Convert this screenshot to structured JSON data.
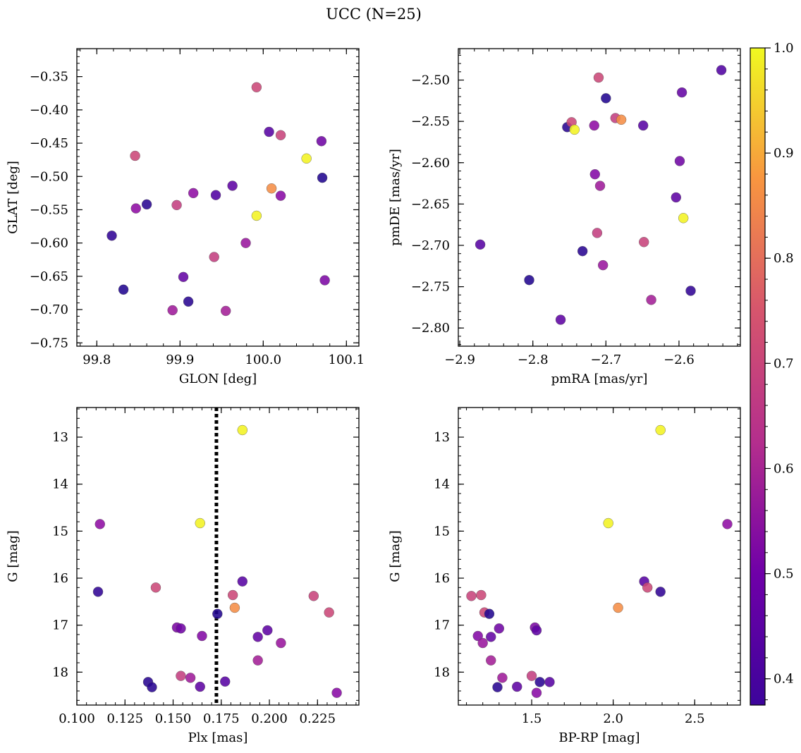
{
  "figure": {
    "title": "UCC (N=25)"
  },
  "colorbar": {
    "min": 0.375,
    "max": 1.0,
    "ticks": [
      0.4,
      0.5,
      0.6,
      0.7,
      0.8,
      0.9,
      1.0
    ],
    "tick_labels": [
      "0.4",
      "0.5",
      "0.6",
      "0.7",
      "0.8",
      "0.9",
      "1.0"
    ],
    "colormap": "plasma"
  },
  "chart_data": [
    {
      "type": "scatter",
      "id": "glon-glat",
      "xlabel": "GLON [deg]",
      "ylabel": "GLAT [deg]",
      "xlim": [
        99.776,
        100.115
      ],
      "ylim": [
        -0.755,
        -0.308
      ],
      "xticks": [
        99.8,
        99.9,
        100.0,
        100.1
      ],
      "xtick_labels": [
        "99.8",
        "99.9",
        "100.0",
        "100.1"
      ],
      "yticks": [
        -0.35,
        -0.4,
        -0.45,
        -0.5,
        -0.55,
        -0.6,
        -0.65,
        -0.7,
        -0.75
      ],
      "ytick_labels": [
        "−0.35",
        "−0.40",
        "−0.45",
        "−0.50",
        "−0.55",
        "−0.60",
        "−0.65",
        "−0.70",
        "−0.75"
      ],
      "y_inverted": false,
      "points": [
        {
          "x": 99.818,
          "y": -0.589,
          "c": 0.42
        },
        {
          "x": 99.832,
          "y": -0.67,
          "c": 0.4
        },
        {
          "x": 99.846,
          "y": -0.469,
          "c": 0.69
        },
        {
          "x": 99.847,
          "y": -0.548,
          "c": 0.56
        },
        {
          "x": 99.86,
          "y": -0.542,
          "c": 0.41
        },
        {
          "x": 99.891,
          "y": -0.701,
          "c": 0.59
        },
        {
          "x": 99.896,
          "y": -0.543,
          "c": 0.67
        },
        {
          "x": 99.904,
          "y": -0.651,
          "c": 0.49
        },
        {
          "x": 99.91,
          "y": -0.688,
          "c": 0.41
        },
        {
          "x": 99.916,
          "y": -0.525,
          "c": 0.56
        },
        {
          "x": 99.941,
          "y": -0.621,
          "c": 0.67
        },
        {
          "x": 99.943,
          "y": -0.528,
          "c": 0.46
        },
        {
          "x": 99.955,
          "y": -0.702,
          "c": 0.6
        },
        {
          "x": 99.963,
          "y": -0.514,
          "c": 0.48
        },
        {
          "x": 99.979,
          "y": -0.6,
          "c": 0.58
        },
        {
          "x": 99.992,
          "y": -0.366,
          "c": 0.69
        },
        {
          "x": 99.992,
          "y": -0.559,
          "c": 0.99
        },
        {
          "x": 100.007,
          "y": -0.433,
          "c": 0.47
        },
        {
          "x": 100.01,
          "y": -0.518,
          "c": 0.83
        },
        {
          "x": 100.021,
          "y": -0.438,
          "c": 0.68
        },
        {
          "x": 100.021,
          "y": -0.529,
          "c": 0.55
        },
        {
          "x": 100.052,
          "y": -0.473,
          "c": 0.99
        },
        {
          "x": 100.07,
          "y": -0.447,
          "c": 0.51
        },
        {
          "x": 100.071,
          "y": -0.502,
          "c": 0.4
        },
        {
          "x": 100.074,
          "y": -0.656,
          "c": 0.53
        }
      ]
    },
    {
      "type": "scatter",
      "id": "pmra-pmde",
      "xlabel": "pmRA [mas/yr]",
      "ylabel": "pmDE [mas/yr]",
      "xlim": [
        -2.902,
        -2.516
      ],
      "ylim": [
        -2.822,
        -2.462
      ],
      "xticks": [
        -2.9,
        -2.8,
        -2.7,
        -2.6
      ],
      "xtick_labels": [
        "−2.9",
        "−2.8",
        "−2.7",
        "−2.6"
      ],
      "yticks": [
        -2.5,
        -2.55,
        -2.6,
        -2.65,
        -2.7,
        -2.75,
        -2.8
      ],
      "ytick_labels": [
        "−2.50",
        "−2.55",
        "−2.60",
        "−2.65",
        "−2.70",
        "−2.75",
        "−2.80"
      ],
      "y_inverted": false,
      "points": [
        {
          "x": -2.872,
          "y": -2.699,
          "c": 0.47
        },
        {
          "x": -2.805,
          "y": -2.742,
          "c": 0.4
        },
        {
          "x": -2.762,
          "y": -2.79,
          "c": 0.48
        },
        {
          "x": -2.753,
          "y": -2.557,
          "c": 0.41
        },
        {
          "x": -2.747,
          "y": -2.551,
          "c": 0.69
        },
        {
          "x": -2.743,
          "y": -2.56,
          "c": 0.99
        },
        {
          "x": -2.732,
          "y": -2.707,
          "c": 0.41
        },
        {
          "x": -2.716,
          "y": -2.555,
          "c": 0.56
        },
        {
          "x": -2.715,
          "y": -2.614,
          "c": 0.54
        },
        {
          "x": -2.712,
          "y": -2.685,
          "c": 0.67
        },
        {
          "x": -2.71,
          "y": -2.497,
          "c": 0.69
        },
        {
          "x": -2.708,
          "y": -2.628,
          "c": 0.59
        },
        {
          "x": -2.704,
          "y": -2.724,
          "c": 0.58
        },
        {
          "x": -2.7,
          "y": -2.522,
          "c": 0.4
        },
        {
          "x": -2.687,
          "y": -2.546,
          "c": 0.67
        },
        {
          "x": -2.679,
          "y": -2.548,
          "c": 0.83
        },
        {
          "x": -2.649,
          "y": -2.555,
          "c": 0.47
        },
        {
          "x": -2.648,
          "y": -2.696,
          "c": 0.68
        },
        {
          "x": -2.638,
          "y": -2.766,
          "c": 0.6
        },
        {
          "x": -2.604,
          "y": -2.642,
          "c": 0.48
        },
        {
          "x": -2.599,
          "y": -2.598,
          "c": 0.51
        },
        {
          "x": -2.596,
          "y": -2.515,
          "c": 0.49
        },
        {
          "x": -2.594,
          "y": -2.667,
          "c": 0.99
        },
        {
          "x": -2.584,
          "y": -2.755,
          "c": 0.42
        },
        {
          "x": -2.542,
          "y": -2.488,
          "c": 0.46
        }
      ]
    },
    {
      "type": "scatter",
      "id": "plx-g",
      "xlabel": "Plx [mas]",
      "ylabel": "G [mag]",
      "xlim": [
        0.1,
        0.2465
      ],
      "ylim": [
        18.7,
        12.37
      ],
      "xticks": [
        0.1,
        0.125,
        0.15,
        0.175,
        0.2,
        0.225
      ],
      "xtick_labels": [
        "0.100",
        "0.125",
        "0.150",
        "0.175",
        "0.200",
        "0.225"
      ],
      "yticks": [
        13,
        14,
        15,
        16,
        17,
        18
      ],
      "ytick_labels": [
        "13",
        "14",
        "15",
        "16",
        "17",
        "18"
      ],
      "y_inverted": true,
      "reference_line": {
        "x": 0.1725,
        "style": "dotted"
      },
      "points": [
        {
          "x": 0.186,
          "y": 12.85,
          "c": 0.99
        },
        {
          "x": 0.112,
          "y": 14.85,
          "c": 0.56
        },
        {
          "x": 0.164,
          "y": 14.83,
          "c": 0.99
        },
        {
          "x": 0.111,
          "y": 16.29,
          "c": 0.42
        },
        {
          "x": 0.141,
          "y": 16.2,
          "c": 0.69
        },
        {
          "x": 0.186,
          "y": 16.07,
          "c": 0.47
        },
        {
          "x": 0.181,
          "y": 16.36,
          "c": 0.69
        },
        {
          "x": 0.223,
          "y": 16.38,
          "c": 0.68
        },
        {
          "x": 0.182,
          "y": 16.63,
          "c": 0.83
        },
        {
          "x": 0.173,
          "y": 16.76,
          "c": 0.4
        },
        {
          "x": 0.231,
          "y": 16.73,
          "c": 0.69
        },
        {
          "x": 0.152,
          "y": 17.05,
          "c": 0.53
        },
        {
          "x": 0.154,
          "y": 17.07,
          "c": 0.51
        },
        {
          "x": 0.199,
          "y": 17.11,
          "c": 0.48
        },
        {
          "x": 0.165,
          "y": 17.23,
          "c": 0.54
        },
        {
          "x": 0.194,
          "y": 17.25,
          "c": 0.49
        },
        {
          "x": 0.206,
          "y": 17.38,
          "c": 0.58
        },
        {
          "x": 0.194,
          "y": 17.75,
          "c": 0.6
        },
        {
          "x": 0.154,
          "y": 18.08,
          "c": 0.67
        },
        {
          "x": 0.159,
          "y": 18.12,
          "c": 0.59
        },
        {
          "x": 0.137,
          "y": 18.21,
          "c": 0.41
        },
        {
          "x": 0.177,
          "y": 18.2,
          "c": 0.47
        },
        {
          "x": 0.139,
          "y": 18.32,
          "c": 0.41
        },
        {
          "x": 0.164,
          "y": 18.31,
          "c": 0.48
        },
        {
          "x": 0.235,
          "y": 18.44,
          "c": 0.55
        }
      ]
    },
    {
      "type": "scatter",
      "id": "bprp-g",
      "xlabel": "BP-RP [mag]",
      "ylabel": "G [mag]",
      "xlim": [
        1.05,
        2.78
      ],
      "ylim": [
        18.7,
        12.37
      ],
      "xticks": [
        1.5,
        2.0,
        2.5
      ],
      "xtick_labels": [
        "1.5",
        "2.0",
        "2.5"
      ],
      "yticks": [
        13,
        14,
        15,
        16,
        17,
        18
      ],
      "ytick_labels": [
        "13",
        "14",
        "15",
        "16",
        "17",
        "18"
      ],
      "y_inverted": true,
      "points": [
        {
          "x": 2.29,
          "y": 12.85,
          "c": 0.99
        },
        {
          "x": 1.97,
          "y": 14.83,
          "c": 0.99
        },
        {
          "x": 2.7,
          "y": 14.85,
          "c": 0.56
        },
        {
          "x": 2.19,
          "y": 16.07,
          "c": 0.47
        },
        {
          "x": 2.21,
          "y": 16.2,
          "c": 0.69
        },
        {
          "x": 2.29,
          "y": 16.29,
          "c": 0.42
        },
        {
          "x": 1.13,
          "y": 16.38,
          "c": 0.68
        },
        {
          "x": 1.19,
          "y": 16.36,
          "c": 0.69
        },
        {
          "x": 2.03,
          "y": 16.63,
          "c": 0.83
        },
        {
          "x": 1.21,
          "y": 16.73,
          "c": 0.69
        },
        {
          "x": 1.24,
          "y": 16.76,
          "c": 0.4
        },
        {
          "x": 1.52,
          "y": 17.05,
          "c": 0.53
        },
        {
          "x": 1.53,
          "y": 17.11,
          "c": 0.48
        },
        {
          "x": 1.3,
          "y": 17.07,
          "c": 0.51
        },
        {
          "x": 1.17,
          "y": 17.23,
          "c": 0.54
        },
        {
          "x": 1.25,
          "y": 17.25,
          "c": 0.49
        },
        {
          "x": 1.2,
          "y": 17.38,
          "c": 0.58
        },
        {
          "x": 1.25,
          "y": 17.75,
          "c": 0.6
        },
        {
          "x": 1.5,
          "y": 18.08,
          "c": 0.67
        },
        {
          "x": 1.32,
          "y": 18.12,
          "c": 0.59
        },
        {
          "x": 1.55,
          "y": 18.21,
          "c": 0.41
        },
        {
          "x": 1.61,
          "y": 18.21,
          "c": 0.47
        },
        {
          "x": 1.29,
          "y": 18.32,
          "c": 0.41
        },
        {
          "x": 1.41,
          "y": 18.31,
          "c": 0.48
        },
        {
          "x": 1.53,
          "y": 18.44,
          "c": 0.55
        }
      ]
    }
  ]
}
